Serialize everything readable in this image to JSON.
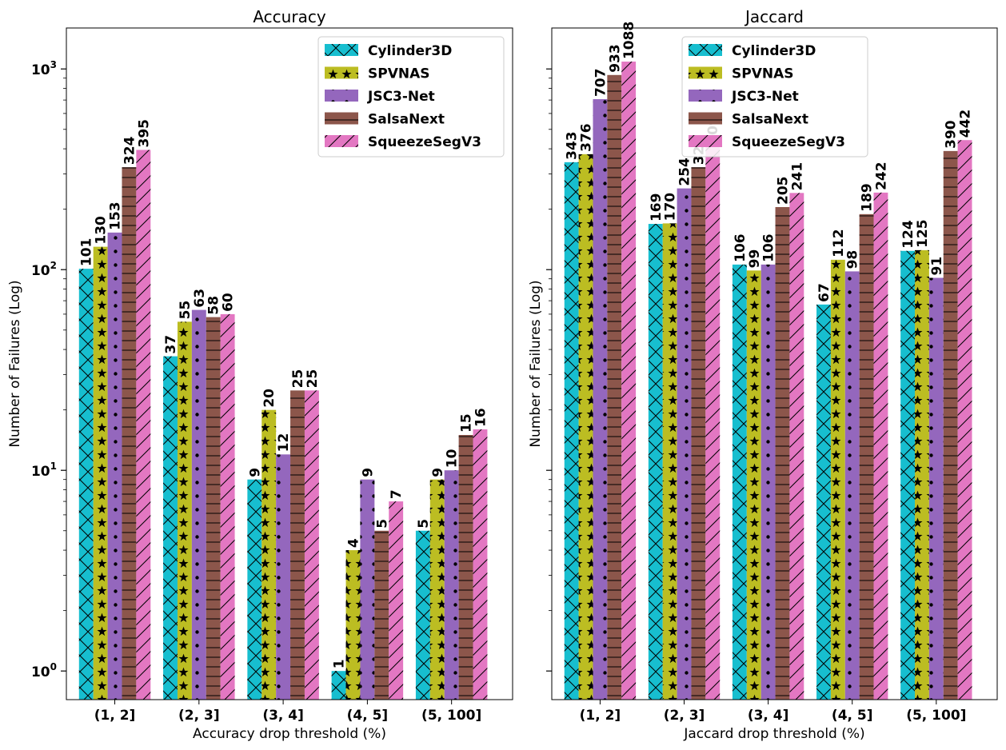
{
  "chart_data": [
    {
      "type": "bar",
      "title": "Accuracy",
      "xlabel": "Accuracy drop threshold (%)",
      "ylabel": "Number of Failures (Log)",
      "yscale": "log",
      "ylim": [
        0.72,
        1600
      ],
      "yticks": [
        {
          "value": 1,
          "base": "10",
          "exp": "0"
        },
        {
          "value": 10,
          "base": "10",
          "exp": "1"
        },
        {
          "value": 100,
          "base": "10",
          "exp": "2"
        },
        {
          "value": 1000,
          "base": "10",
          "exp": "3"
        }
      ],
      "categories": [
        "(1, 2]",
        "(2, 3]",
        "(3, 4]",
        "(4, 5]",
        "(5, 100]"
      ],
      "legend_position": "top-right",
      "series": [
        {
          "name": "Cylinder3D",
          "values": [
            101,
            37,
            9,
            1,
            5
          ]
        },
        {
          "name": "SPVNAS",
          "values": [
            130,
            55,
            20,
            4,
            9
          ]
        },
        {
          "name": "JSC3-Net",
          "values": [
            153,
            63,
            12,
            9,
            10
          ]
        },
        {
          "name": "SalsaNext",
          "values": [
            324,
            58,
            25,
            5,
            15
          ]
        },
        {
          "name": "SqueezeSegV3",
          "values": [
            395,
            60,
            25,
            7,
            16
          ]
        }
      ]
    },
    {
      "type": "bar",
      "title": "Jaccard",
      "xlabel": "Jaccard drop threshold (%)",
      "ylabel": "Number of Failures (Log)",
      "yscale": "log",
      "ylim": [
        0.72,
        1600
      ],
      "categories": [
        "(1, 2]",
        "(2, 3]",
        "(3, 4]",
        "(4, 5]",
        "(5, 100]"
      ],
      "legend_position": "top-center",
      "series": [
        {
          "name": "Cylinder3D",
          "values": [
            343,
            169,
            106,
            67,
            124
          ]
        },
        {
          "name": "SPVNAS",
          "values": [
            376,
            170,
            99,
            112,
            125
          ]
        },
        {
          "name": "JSC3-Net",
          "values": [
            707,
            254,
            106,
            98,
            91
          ]
        },
        {
          "name": "SalsaNext",
          "values": [
            933,
            324,
            205,
            189,
            390
          ]
        },
        {
          "name": "SqueezeSegV3",
          "values": [
            1088,
            409,
            241,
            242,
            442
          ]
        }
      ]
    }
  ],
  "series_style": [
    {
      "color": "#17becf",
      "hatch": "x"
    },
    {
      "color": "#bcbd22",
      "hatch": "star"
    },
    {
      "color": "#9467bd",
      "hatch": "dot"
    },
    {
      "color": "#8c564b",
      "hatch": "hline"
    },
    {
      "color": "#e377c2",
      "hatch": "slash"
    }
  ]
}
